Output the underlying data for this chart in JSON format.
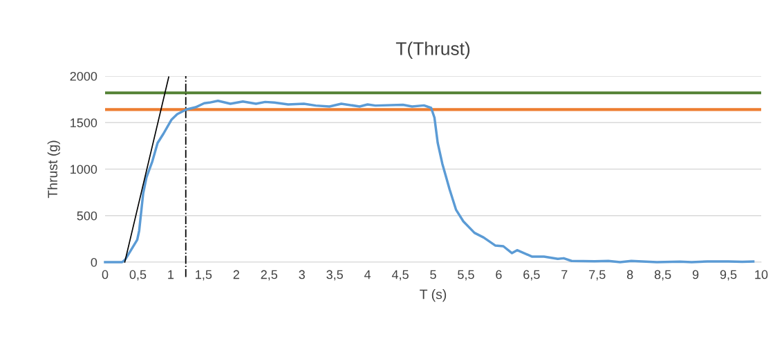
{
  "chart_data": {
    "type": "line",
    "title": "T(Thrust)",
    "xlabel": "T (s)",
    "ylabel": "Thrust (g)",
    "xlim": [
      0,
      10
    ],
    "xticks": [
      0,
      {
        "value": 0.5,
        "label": "0,5"
      },
      1,
      {
        "value": 1.5,
        "label": "1,5"
      },
      2,
      {
        "value": 2.5,
        "label": "2,5"
      },
      3,
      {
        "value": 3.5,
        "label": "3,5"
      },
      4,
      {
        "value": 4.5,
        "label": "4,5"
      },
      5,
      {
        "value": 5.5,
        "label": "5,5"
      },
      6,
      {
        "value": 6.5,
        "label": "6,5"
      },
      7,
      {
        "value": 7.5,
        "label": "7,5"
      },
      8,
      {
        "value": 8.5,
        "label": "8,5"
      },
      9,
      {
        "value": 9.5,
        "label": "9,5"
      },
      10
    ],
    "ylim": [
      0,
      2000
    ],
    "yticks": [
      0,
      500,
      1000,
      1500,
      2000
    ],
    "grid": "y",
    "legend": false,
    "marker": "none",
    "series": [
      {
        "color": "#5b9bd5",
        "line_style": "solid",
        "x": [
          0,
          0.26,
          0.31,
          0.49,
          0.52,
          0.58,
          0.63,
          0.72,
          0.8,
          0.89,
          1.01,
          1.1,
          1.24,
          1.38,
          1.51,
          1.59,
          1.72,
          1.91,
          2.1,
          2.3,
          2.44,
          2.58,
          2.79,
          3.03,
          3.21,
          3.42,
          3.6,
          3.88,
          4.0,
          4.12,
          4.54,
          4.68,
          4.86,
          4.97,
          5.02,
          5.07,
          5.14,
          5.25,
          5.35,
          5.46,
          5.63,
          5.77,
          5.95,
          6.07,
          6.2,
          6.28,
          6.51,
          6.69,
          6.9,
          6.99,
          7.11,
          7.46,
          7.67,
          7.85,
          8.02,
          8.41,
          8.76,
          8.94,
          9.18,
          9.5,
          9.71,
          9.88
        ],
        "values": [
          0,
          0,
          30,
          240,
          340,
          736,
          910,
          1083,
          1281,
          1381,
          1529,
          1591,
          1641,
          1665,
          1708,
          1715,
          1734,
          1703,
          1727,
          1703,
          1722,
          1715,
          1695,
          1703,
          1683,
          1673,
          1703,
          1673,
          1695,
          1683,
          1692,
          1673,
          1685,
          1658,
          1554,
          1281,
          1058,
          785,
          562,
          439,
          315,
          265,
          178,
          171,
          97,
          129,
          59,
          59,
          35,
          42,
          13,
          10,
          13,
          0,
          13,
          0,
          5,
          0,
          7,
          7,
          3,
          7
        ]
      },
      {
        "color": "#000000",
        "line_style": "solid",
        "x": [
          0.3,
          0.97
        ],
        "values": [
          0,
          1990
        ]
      }
    ],
    "ref_lines": [
      {
        "axis": "y",
        "value": 1820,
        "color": "#548235",
        "line_style": "solid"
      },
      {
        "axis": "y",
        "value": 1640,
        "color": "#ed7d31",
        "line_style": "solid"
      },
      {
        "axis": "x",
        "value": 1.23,
        "color": "#000000",
        "line_style": "dashdot"
      }
    ]
  }
}
